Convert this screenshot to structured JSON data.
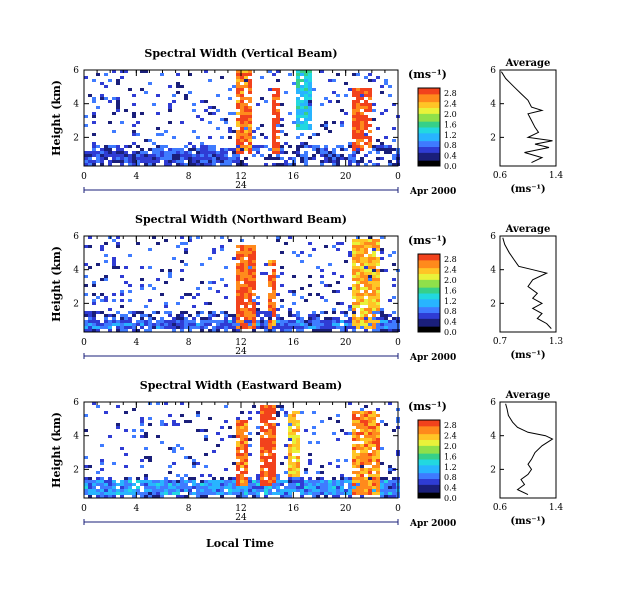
{
  "figure": {
    "xlabel_bottom": "Local Time",
    "date_label": "Apr 2000",
    "unit_label": "(ms⁻¹)",
    "avg_title": "Average",
    "avg_xlabel": "(ms⁻¹)"
  },
  "colors": {
    "scale": [
      "#000000",
      "#1a1f7a",
      "#2f3cd4",
      "#3f7bff",
      "#28b4ff",
      "#22d8e0",
      "#36d089",
      "#8fe04a",
      "#e9f23a",
      "#ffc526",
      "#ff8a1c",
      "#f2421c"
    ]
  },
  "chart_data": [
    {
      "type": "heatmap",
      "title": "Spectral Width (Vertical Beam)",
      "xlabel": "",
      "ylabel": "Height (km)",
      "x_ticks": [
        "0",
        "4",
        "8",
        "12",
        "16",
        "20",
        "0"
      ],
      "x_ticks_secondary": [
        "24"
      ],
      "xlim": [
        0,
        24
      ],
      "y_ticks": [
        "2",
        "4",
        "6"
      ],
      "ylim": [
        0.3,
        6
      ],
      "colorbar": {
        "ticks": [
          "0.0",
          "0.4",
          "0.8",
          "1.2",
          "1.6",
          "2.0",
          "2.4",
          "2.8"
        ],
        "range": [
          0,
          3.0
        ]
      },
      "average": {
        "title": "Average",
        "xlabel": "(ms⁻¹)",
        "x_ticks": [
          "0.6",
          "1.4"
        ],
        "xlim": [
          0.6,
          1.4
        ],
        "y_ticks": [
          "2",
          "4",
          "6"
        ],
        "ylim": [
          0.3,
          6
        ],
        "profile": [
          [
            0.5,
            1.05
          ],
          [
            0.8,
            1.2
          ],
          [
            1.1,
            0.95
          ],
          [
            1.4,
            1.3
          ],
          [
            1.6,
            1.1
          ],
          [
            1.8,
            1.35
          ],
          [
            2.0,
            1.0
          ],
          [
            2.3,
            1.15
          ],
          [
            2.6,
            1.1
          ],
          [
            3.0,
            1.05
          ],
          [
            3.4,
            1.0
          ],
          [
            3.6,
            1.2
          ],
          [
            3.8,
            1.05
          ],
          [
            4.2,
            1.0
          ],
          [
            4.6,
            0.9
          ],
          [
            5.0,
            0.8
          ],
          [
            5.5,
            0.68
          ],
          [
            5.9,
            0.62
          ]
        ]
      },
      "features": [
        {
          "x": [
            0,
            12
          ],
          "y": [
            0.4,
            1.2
          ],
          "value": 0.7
        },
        {
          "x": [
            11.5,
            12.8
          ],
          "y": [
            1.0,
            6.0
          ],
          "value": 2.7
        },
        {
          "x": [
            14.3,
            15.0
          ],
          "y": [
            1.0,
            5.0
          ],
          "value": 2.9
        },
        {
          "x": [
            16.3,
            17.5
          ],
          "y": [
            2.5,
            6.0
          ],
          "value": 1.3
        },
        {
          "x": [
            20.5,
            22.0
          ],
          "y": [
            1.2,
            5.0
          ],
          "value": 2.9
        }
      ]
    },
    {
      "type": "heatmap",
      "title": "Spectral Width (Northward Beam)",
      "xlabel": "",
      "ylabel": "Height (km)",
      "x_ticks": [
        "0",
        "4",
        "8",
        "12",
        "16",
        "20",
        "0"
      ],
      "x_ticks_secondary": [
        "24"
      ],
      "xlim": [
        0,
        24
      ],
      "y_ticks": [
        "2",
        "4",
        "6"
      ],
      "ylim": [
        0.3,
        6
      ],
      "colorbar": {
        "ticks": [
          "0.0",
          "0.4",
          "0.8",
          "1.2",
          "1.6",
          "2.0",
          "2.4",
          "2.8"
        ],
        "range": [
          0,
          3.0
        ]
      },
      "average": {
        "title": "Average",
        "xlabel": "(ms⁻¹)",
        "x_ticks": [
          "0.7",
          "1.3"
        ],
        "xlim": [
          0.7,
          1.3
        ],
        "y_ticks": [
          "2",
          "4",
          "6"
        ],
        "ylim": [
          0.3,
          6
        ],
        "profile": [
          [
            0.5,
            1.25
          ],
          [
            0.8,
            1.2
          ],
          [
            1.1,
            1.1
          ],
          [
            1.4,
            1.15
          ],
          [
            1.7,
            1.05
          ],
          [
            2.0,
            1.15
          ],
          [
            2.3,
            1.05
          ],
          [
            2.6,
            1.1
          ],
          [
            3.0,
            1.0
          ],
          [
            3.4,
            1.05
          ],
          [
            3.8,
            1.2
          ],
          [
            4.0,
            1.05
          ],
          [
            4.2,
            0.9
          ],
          [
            4.6,
            0.85
          ],
          [
            5.0,
            0.8
          ],
          [
            5.5,
            0.75
          ],
          [
            5.9,
            0.73
          ]
        ]
      },
      "features": [
        {
          "x": [
            0,
            24
          ],
          "y": [
            0.4,
            1.0
          ],
          "value": 0.8
        },
        {
          "x": [
            11.7,
            13.0
          ],
          "y": [
            0.5,
            5.5
          ],
          "value": 2.8
        },
        {
          "x": [
            14.0,
            14.8
          ],
          "y": [
            0.5,
            4.5
          ],
          "value": 2.7
        },
        {
          "x": [
            20.5,
            22.5
          ],
          "y": [
            0.5,
            5.8
          ],
          "value": 2.4
        }
      ]
    },
    {
      "type": "heatmap",
      "title": "Spectral Width (Eastward Beam)",
      "xlabel": "Local Time",
      "ylabel": "Height (km)",
      "x_ticks": [
        "0",
        "4",
        "8",
        "12",
        "16",
        "20",
        "0"
      ],
      "x_ticks_secondary": [
        "24"
      ],
      "xlim": [
        0,
        24
      ],
      "y_ticks": [
        "2",
        "4",
        "6"
      ],
      "ylim": [
        0.3,
        6
      ],
      "colorbar": {
        "ticks": [
          "0.0",
          "0.4",
          "0.8",
          "1.2",
          "1.6",
          "2.0",
          "2.4",
          "2.8"
        ],
        "range": [
          0,
          3.0
        ]
      },
      "average": {
        "title": "Average",
        "xlabel": "(ms⁻¹)",
        "x_ticks": [
          "0.6",
          "1.4"
        ],
        "xlim": [
          0.6,
          1.4
        ],
        "y_ticks": [
          "2",
          "4",
          "6"
        ],
        "ylim": [
          0.3,
          6
        ],
        "profile": [
          [
            0.5,
            1.0
          ],
          [
            0.8,
            0.85
          ],
          [
            1.1,
            0.95
          ],
          [
            1.4,
            0.9
          ],
          [
            1.7,
            1.0
          ],
          [
            2.0,
            1.05
          ],
          [
            2.3,
            1.0
          ],
          [
            2.6,
            1.05
          ],
          [
            3.0,
            1.1
          ],
          [
            3.4,
            1.2
          ],
          [
            3.8,
            1.35
          ],
          [
            4.0,
            1.25
          ],
          [
            4.2,
            1.0
          ],
          [
            4.5,
            0.85
          ],
          [
            4.8,
            0.78
          ],
          [
            5.2,
            0.72
          ],
          [
            5.6,
            0.7
          ],
          [
            5.9,
            0.68
          ]
        ]
      },
      "features": [
        {
          "x": [
            0,
            24
          ],
          "y": [
            0.4,
            1.3
          ],
          "value": 1.0
        },
        {
          "x": [
            11.5,
            12.5
          ],
          "y": [
            1.0,
            5.0
          ],
          "value": 2.7
        },
        {
          "x": [
            13.4,
            14.6
          ],
          "y": [
            1.0,
            5.8
          ],
          "value": 2.9
        },
        {
          "x": [
            15.5,
            16.5
          ],
          "y": [
            1.5,
            5.5
          ],
          "value": 2.3
        },
        {
          "x": [
            20.5,
            22.5
          ],
          "y": [
            0.5,
            5.5
          ],
          "value": 2.6
        }
      ]
    }
  ]
}
